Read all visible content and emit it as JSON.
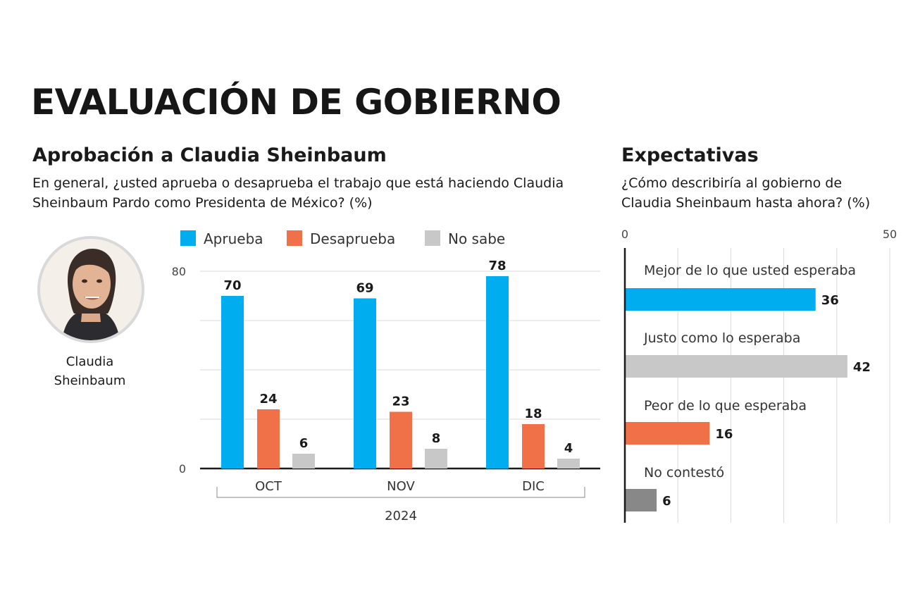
{
  "header": {
    "title": "EVALUACIÓN DE GOBIERNO"
  },
  "approval": {
    "heading": "Aprobación a Claudia Sheinbaum",
    "question": "En general, ¿usted aprueba o desaprueba el trabajo que está haciendo Claudia Sheinbaum Pardo como Presidenta de México? (%)",
    "person": {
      "name_line1": "Claudia",
      "name_line2": "Sheinbaum"
    }
  },
  "expectations": {
    "heading": "Expectativas",
    "question": "¿Cómo describiría al gobierno de Claudia Sheinbaum hasta ahora? (%)"
  },
  "colors": {
    "aprueba": "#00aeef",
    "desaprueba": "#f07148",
    "no_sabe": "#c8c8c8",
    "no_contesto": "#888888",
    "gridline": "#d9d9d9",
    "axis": "#1a1a1a"
  },
  "chart_data": [
    {
      "type": "bar",
      "categories": [
        "OCT",
        "NOV",
        "DIC"
      ],
      "x_group_label": "2024",
      "series": [
        {
          "name": "Aprueba",
          "values": [
            70,
            69,
            78
          ],
          "color": "#00aeef"
        },
        {
          "name": "Desaprueba",
          "values": [
            24,
            23,
            18
          ],
          "color": "#f07148"
        },
        {
          "name": "No sabe",
          "values": [
            6,
            8,
            4
          ],
          "color": "#c8c8c8"
        }
      ],
      "ylim": [
        0,
        80
      ],
      "y_tick_labels": [
        "0",
        "80"
      ],
      "gridlines": [
        0,
        20,
        40,
        60,
        80
      ],
      "legend": "top",
      "data_labels": true
    },
    {
      "type": "bar",
      "orientation": "horizontal",
      "categories": [
        "Mejor de lo que usted esperaba",
        "Justo como lo esperaba",
        "Peor de lo que esperaba",
        "No contestó"
      ],
      "values": [
        36,
        42,
        16,
        6
      ],
      "colors": [
        "#00aeef",
        "#c8c8c8",
        "#f07148",
        "#888888"
      ],
      "xlim": [
        0,
        50
      ],
      "x_tick_labels": [
        "0",
        "50"
      ],
      "gridlines": [
        10,
        20,
        30,
        40,
        50
      ],
      "data_labels": true
    }
  ]
}
